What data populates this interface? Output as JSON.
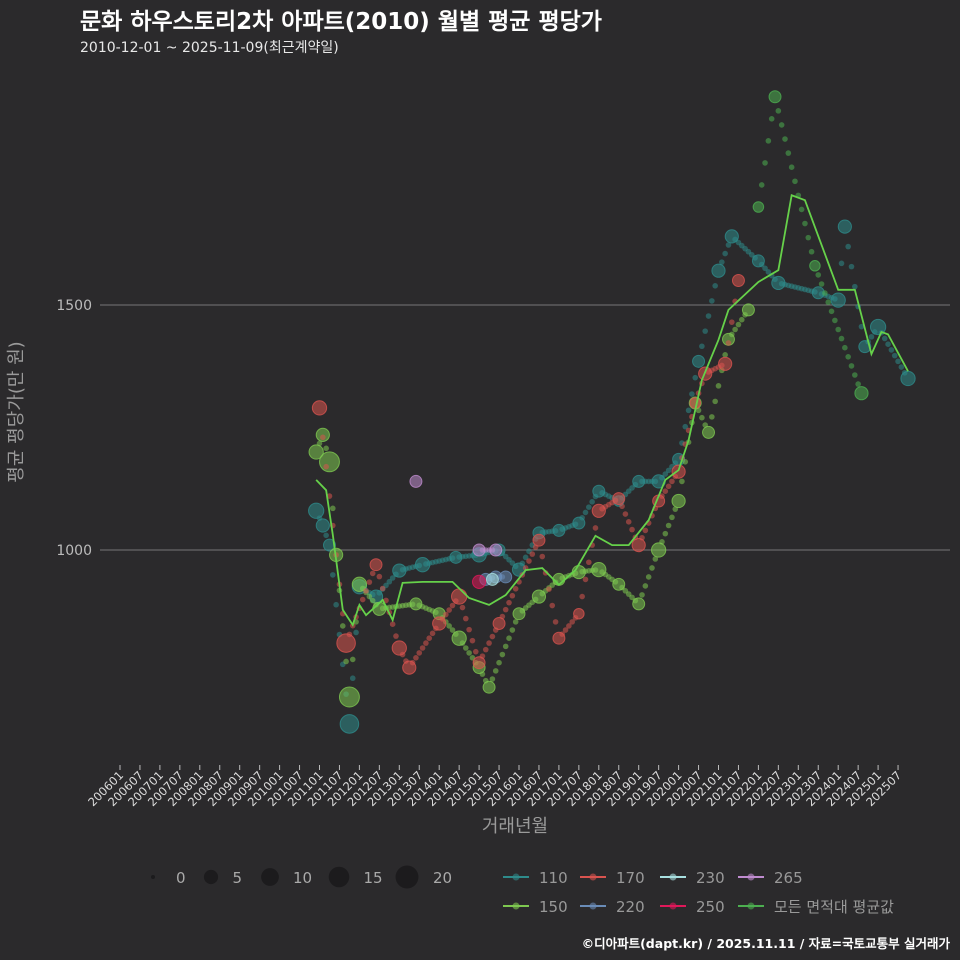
{
  "title": "문화 하우스토리2차 아파트(2010) 월별 평균 평당가",
  "subtitle": "2010-12-01 ~ 2025-11-09(최근계약일)",
  "caption": "©디아파트(dapt.kr) / 2025.11.11 / 자료=국토교통부 실거래가",
  "chart_data": {
    "type": "scatter",
    "xlabel": "거래년월",
    "ylabel": "평균 평당가(만 원)",
    "ylim": [
      570,
      1990
    ],
    "yticks": [
      1000,
      1500
    ],
    "grid": true,
    "xticks": [
      "200601",
      "200607",
      "200701",
      "200707",
      "200801",
      "200807",
      "200901",
      "200907",
      "201001",
      "201007",
      "201101",
      "201107",
      "201201",
      "201207",
      "201301",
      "201307",
      "201401",
      "201407",
      "201501",
      "201507",
      "201601",
      "201607",
      "201701",
      "201707",
      "201801",
      "201807",
      "201901",
      "201907",
      "202001",
      "202007",
      "202101",
      "202107",
      "202201",
      "202207",
      "202301",
      "202307",
      "202401",
      "202407",
      "202501",
      "202507"
    ],
    "size_legend": {
      "values": [
        0,
        5,
        10,
        15,
        20
      ]
    },
    "legend_placement": "bottom",
    "series": [
      {
        "name": "110",
        "color": "#2e8b8b",
        "points": [
          [
            "2010-12",
            1080,
            6
          ],
          [
            "2011-02",
            1050,
            4
          ],
          [
            "2011-04",
            1010,
            3
          ],
          [
            "2011-10",
            645,
            10
          ],
          [
            "2012-01",
            925,
            5
          ],
          [
            "2012-06",
            905,
            4
          ],
          [
            "2013-01",
            958,
            4
          ],
          [
            "2013-08",
            970,
            5
          ],
          [
            "2014-06",
            985,
            3
          ],
          [
            "2015-01",
            990,
            5
          ],
          [
            "2015-07",
            1000,
            3
          ],
          [
            "2016-01",
            960,
            4
          ],
          [
            "2016-07",
            1035,
            3
          ],
          [
            "2017-01",
            1040,
            3
          ],
          [
            "2017-07",
            1055,
            3
          ],
          [
            "2018-01",
            1120,
            3
          ],
          [
            "2018-07",
            1100,
            2
          ],
          [
            "2019-01",
            1140,
            3
          ],
          [
            "2019-07",
            1140,
            4
          ],
          [
            "2020-01",
            1185,
            3
          ],
          [
            "2020-07",
            1385,
            3
          ],
          [
            "2021-01",
            1570,
            4
          ],
          [
            "2021-05",
            1640,
            4
          ],
          [
            "2022-01",
            1590,
            3
          ],
          [
            "2022-07",
            1545,
            4
          ],
          [
            "2023-07",
            1525,
            3
          ],
          [
            "2024-01",
            1510,
            5
          ],
          [
            "2024-03",
            1660,
            4
          ],
          [
            "2024-09",
            1415,
            3
          ],
          [
            "2025-01",
            1455,
            6
          ],
          [
            "2025-10",
            1350,
            5
          ]
        ]
      },
      {
        "name": "150",
        "color": "#7ec850",
        "points": [
          [
            "2010-12",
            1200,
            5
          ],
          [
            "2011-02",
            1235,
            4
          ],
          [
            "2011-04",
            1180,
            12
          ],
          [
            "2011-06",
            990,
            4
          ],
          [
            "2011-10",
            700,
            12
          ],
          [
            "2012-01",
            930,
            5
          ],
          [
            "2012-07",
            880,
            4
          ],
          [
            "2013-06",
            890,
            3
          ],
          [
            "2014-01",
            870,
            3
          ],
          [
            "2014-07",
            820,
            5
          ],
          [
            "2015-01",
            760,
            3
          ],
          [
            "2015-04",
            720,
            3
          ],
          [
            "2016-01",
            870,
            3
          ],
          [
            "2016-07",
            905,
            4
          ],
          [
            "2017-01",
            940,
            3
          ],
          [
            "2017-07",
            955,
            4
          ],
          [
            "2018-01",
            960,
            5
          ],
          [
            "2018-07",
            930,
            3
          ],
          [
            "2019-01",
            890,
            3
          ],
          [
            "2019-07",
            1000,
            5
          ],
          [
            "2020-01",
            1100,
            4
          ],
          [
            "2020-06",
            1300,
            3
          ],
          [
            "2020-10",
            1240,
            3
          ],
          [
            "2021-04",
            1430,
            3
          ],
          [
            "2021-10",
            1490,
            3
          ]
        ]
      },
      {
        "name": "170",
        "color": "#d9534f",
        "points": [
          [
            "2011-01",
            1290,
            5
          ],
          [
            "2011-09",
            810,
            10
          ],
          [
            "2012-06",
            970,
            3
          ],
          [
            "2013-01",
            800,
            5
          ],
          [
            "2013-04",
            760,
            4
          ],
          [
            "2014-01",
            850,
            4
          ],
          [
            "2014-07",
            905,
            6
          ],
          [
            "2015-01",
            770,
            3
          ],
          [
            "2015-07",
            850,
            3
          ],
          [
            "2016-07",
            1020,
            3
          ],
          [
            "2017-01",
            820,
            3
          ],
          [
            "2017-07",
            870,
            2
          ],
          [
            "2018-01",
            1080,
            4
          ],
          [
            "2018-07",
            1105,
            3
          ],
          [
            "2019-01",
            1010,
            4
          ],
          [
            "2019-07",
            1100,
            3
          ],
          [
            "2020-01",
            1160,
            4
          ],
          [
            "2020-06",
            1300,
            2
          ],
          [
            "2020-09",
            1360,
            4
          ],
          [
            "2021-03",
            1380,
            4
          ],
          [
            "2021-07",
            1550,
            3
          ]
        ]
      },
      {
        "name": "220",
        "color": "#6a8cb8",
        "points": [
          [
            "2015-03",
            940,
            3
          ],
          [
            "2015-06",
            945,
            3
          ],
          [
            "2015-09",
            945,
            3
          ]
        ]
      },
      {
        "name": "230",
        "color": "#a8e0e0",
        "points": [
          [
            "2015-05",
            940,
            3
          ]
        ]
      },
      {
        "name": "250",
        "color": "#e0185a",
        "points": [
          [
            "2015-01",
            935,
            4
          ]
        ]
      },
      {
        "name": "265",
        "color": "#c08cd0",
        "points": [
          [
            "2013-06",
            1140,
            3
          ],
          [
            "2015-01",
            1000,
            3
          ],
          [
            "2015-06",
            1000,
            3
          ]
        ]
      },
      {
        "name": "모든 면적대 평균값",
        "color": "#4caf50",
        "points": [
          [
            "2022-01",
            1700,
            2
          ],
          [
            "2022-06",
            1925,
            3
          ],
          [
            "2023-06",
            1580,
            2
          ],
          [
            "2024-08",
            1320,
            4
          ]
        ]
      }
    ],
    "average_line": {
      "name": "모든 면적대 평균값",
      "color": "#66d14a",
      "points": [
        [
          "2010-12",
          1143
        ],
        [
          "2011-03",
          1122
        ],
        [
          "2011-05",
          1031
        ],
        [
          "2011-08",
          878
        ],
        [
          "2011-11",
          847
        ],
        [
          "2012-01",
          888
        ],
        [
          "2012-03",
          867
        ],
        [
          "2012-08",
          898
        ],
        [
          "2012-11",
          857
        ],
        [
          "2013-02",
          933
        ],
        [
          "2013-08",
          935
        ],
        [
          "2014-05",
          935
        ],
        [
          "2014-10",
          902
        ],
        [
          "2015-04",
          888
        ],
        [
          "2015-09",
          908
        ],
        [
          "2016-03",
          959
        ],
        [
          "2016-08",
          963
        ],
        [
          "2017-01",
          929
        ],
        [
          "2017-06",
          959
        ],
        [
          "2017-12",
          1029
        ],
        [
          "2018-05",
          1010
        ],
        [
          "2018-10",
          1010
        ],
        [
          "2019-04",
          1061
        ],
        [
          "2019-09",
          1143
        ],
        [
          "2020-01",
          1163
        ],
        [
          "2020-04",
          1224
        ],
        [
          "2020-08",
          1347
        ],
        [
          "2021-01",
          1429
        ],
        [
          "2021-04",
          1490
        ],
        [
          "2022-01",
          1547
        ],
        [
          "2022-07",
          1571
        ],
        [
          "2022-11",
          1724
        ],
        [
          "2023-03",
          1714
        ],
        [
          "2024-01",
          1531
        ],
        [
          "2024-06",
          1531
        ],
        [
          "2024-11",
          1400
        ],
        [
          "2025-02",
          1445
        ],
        [
          "2025-04",
          1440
        ],
        [
          "2025-10",
          1365
        ]
      ]
    }
  }
}
